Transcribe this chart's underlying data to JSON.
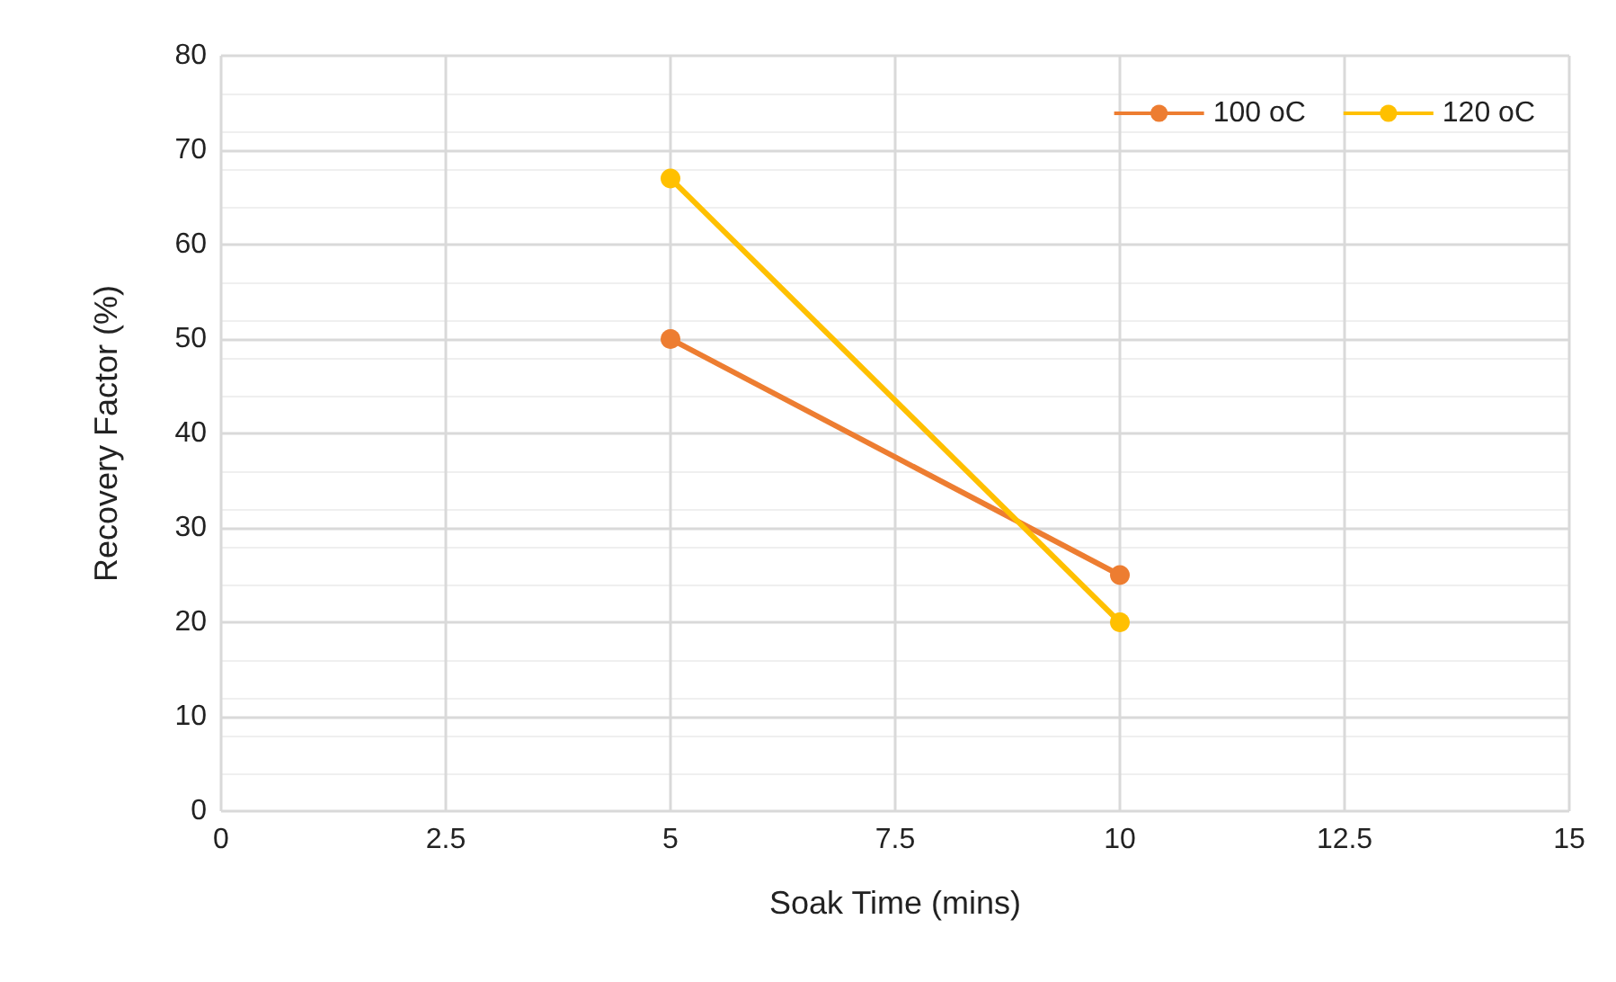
{
  "chart_data": {
    "type": "line",
    "xlabel": "Soak Time (mins)",
    "ylabel": "Recovery Factor (%)",
    "xlim": [
      0,
      15
    ],
    "xticks": [
      0,
      2.5,
      5,
      7.5,
      10,
      12.5,
      15
    ],
    "ylim": [
      0,
      80
    ],
    "yticks": [
      0,
      10,
      20,
      30,
      40,
      50,
      60,
      70,
      80
    ],
    "grid": true,
    "legend": "top right",
    "marker": "circle",
    "line_style": "solid",
    "x": [
      5,
      10
    ],
    "series": [
      {
        "name": "100 oC",
        "color": "#ed7d31",
        "values": [
          50,
          25
        ]
      },
      {
        "name": "120 oC",
        "color": "#ffc000",
        "values": [
          67,
          20
        ]
      }
    ]
  }
}
